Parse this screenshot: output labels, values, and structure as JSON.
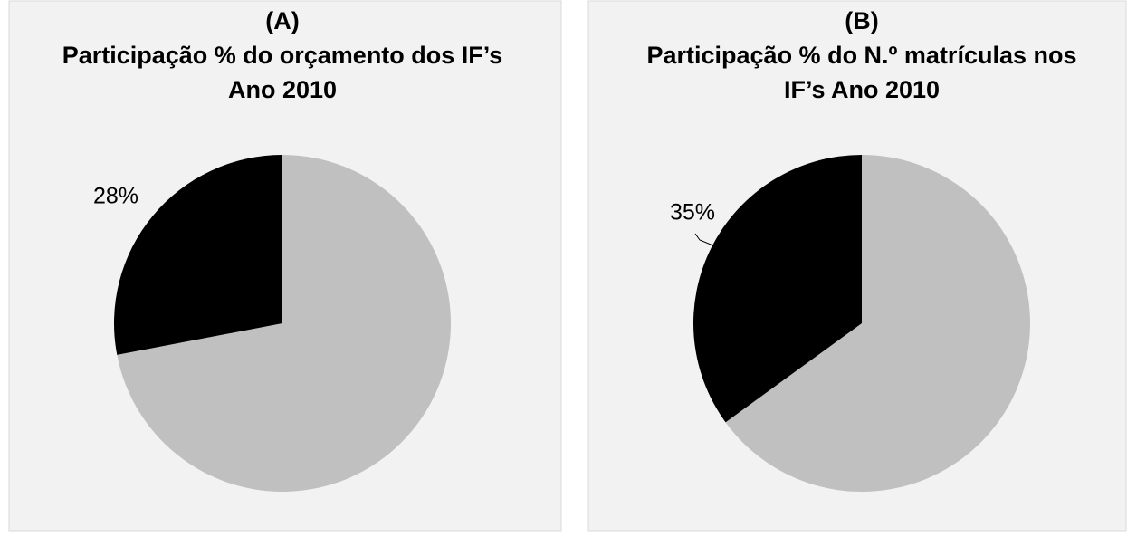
{
  "chart_data": [
    {
      "type": "pie",
      "title": [
        "(A)",
        "Participação % do orçamento dos IF’s",
        "Ano 2010"
      ],
      "values": [
        72,
        28
      ],
      "value_labels": [
        null,
        "28%"
      ],
      "colors": [
        "#c0c0c0",
        "#000000"
      ]
    },
    {
      "type": "pie",
      "title": [
        "(B)",
        "Participação % do N.º matrículas nos",
        "IF’s Ano 2010"
      ],
      "values": [
        65,
        35
      ],
      "value_labels": [
        null,
        "35%"
      ],
      "colors": [
        "#c0c0c0",
        "#000000"
      ]
    }
  ]
}
